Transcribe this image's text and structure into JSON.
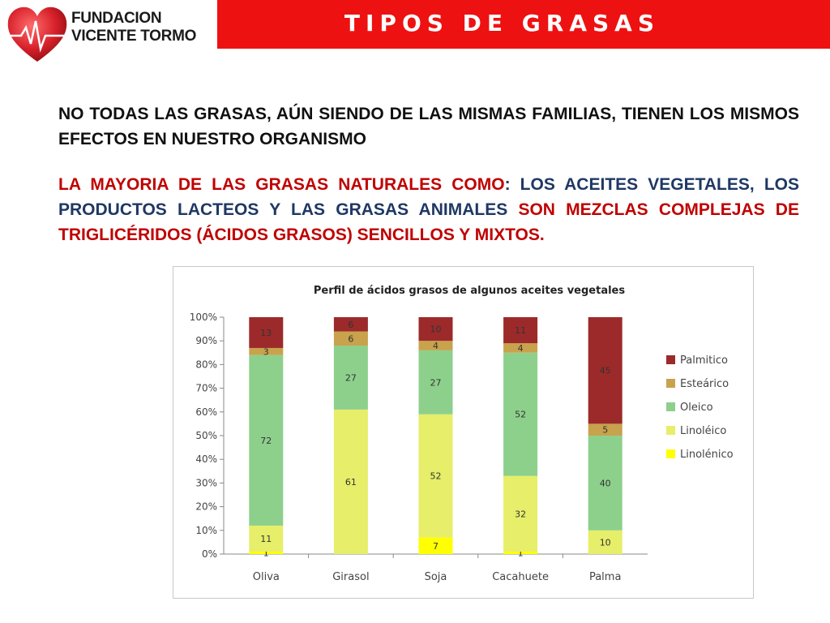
{
  "header": {
    "brand_line1": "FUNDACION",
    "brand_line2": "VICENTE TORMO",
    "title": "TIPOS DE GRASAS"
  },
  "content": {
    "paragraph1": "NO TODAS LAS GRASAS, AÚN SIENDO DE LAS MISMAS FAMILIAS, TIENEN LOS MISMOS EFECTOS EN NUESTRO ORGANISMO",
    "paragraph2": {
      "seg1": "LA MAYORIA DE LAS GRASAS NATURALES COMO",
      "seg2": ": LOS ACEITES VEGETALES, LOS PRODUCTOS LACTEOS  Y LAS GRASAS ANIMALES ",
      "seg3": "SON MEZCLAS COMPLEJAS DE TRIGLICÉRIDOS (ÁCIDOS GRASOS) SENCILLOS Y MIXTOS."
    }
  },
  "colors": {
    "banner": "#ee1111",
    "text_red": "#c00000",
    "text_navy": "#1f3864",
    "heart": "#d6202a"
  },
  "chart_data": {
    "type": "bar",
    "stacked": true,
    "title": "Perfil de ácidos grasos de algunos aceites vegetales",
    "categories": [
      "Oliva",
      "Girasol",
      "Soja",
      "Cacahuete",
      "Palma"
    ],
    "ylim": [
      0,
      100
    ],
    "yticks": [
      "0%",
      "10%",
      "20%",
      "30%",
      "40%",
      "50%",
      "60%",
      "70%",
      "80%",
      "90%",
      "100%"
    ],
    "legend_position": "right",
    "series": [
      {
        "name": "Linolénico",
        "color": "#ffff00",
        "values": [
          1,
          0,
          7,
          1,
          0
        ]
      },
      {
        "name": "Linoléico",
        "color": "#e6ee6a",
        "values": [
          11,
          61,
          52,
          32,
          10
        ]
      },
      {
        "name": "Oleico",
        "color": "#8dd08c",
        "values": [
          72,
          27,
          27,
          52,
          40
        ]
      },
      {
        "name": "Esteárico",
        "color": "#c8a24c",
        "values": [
          3,
          6,
          4,
          4,
          5
        ]
      },
      {
        "name": "Palmitico",
        "color": "#9c2a2a",
        "values": [
          13,
          6,
          10,
          11,
          45
        ]
      }
    ]
  }
}
